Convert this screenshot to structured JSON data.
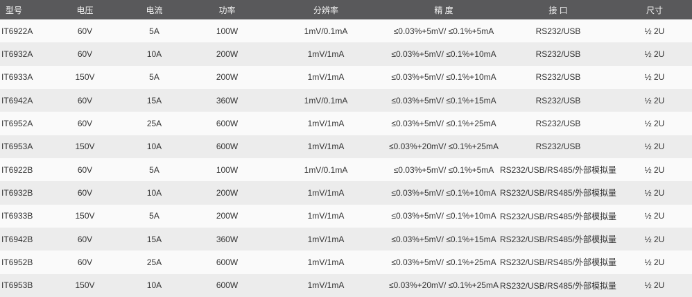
{
  "colors": {
    "header_bg": "#59595b",
    "header_text": "#f2f2f2",
    "row_light": "#fafafa",
    "row_dark": "#ececec",
    "body_text": "#333333"
  },
  "table": {
    "columns": [
      {
        "key": "model",
        "label": "型号"
      },
      {
        "key": "voltage",
        "label": "电压"
      },
      {
        "key": "current",
        "label": "电流"
      },
      {
        "key": "power",
        "label": "功率"
      },
      {
        "key": "resolution",
        "label": "分辨率"
      },
      {
        "key": "accuracy",
        "label": "精 度"
      },
      {
        "key": "interface",
        "label": "接 口"
      },
      {
        "key": "size",
        "label": "尺寸"
      }
    ],
    "rows": [
      [
        "IT6922A",
        "60V",
        "5A",
        "100W",
        "1mV/0.1mA",
        "≤0.03%+5mV/ ≤0.1%+5mA",
        "RS232/USB",
        "½ 2U"
      ],
      [
        "IT6932A",
        "60V",
        "10A",
        "200W",
        "1mV/1mA",
        "≤0.03%+5mV/ ≤0.1%+10mA",
        "RS232/USB",
        "½ 2U"
      ],
      [
        "IT6933A",
        "150V",
        "5A",
        "200W",
        "1mV/1mA",
        "≤0.03%+5mV/ ≤0.1%+10mA",
        "RS232/USB",
        "½ 2U"
      ],
      [
        "IT6942A",
        "60V",
        "15A",
        "360W",
        "1mV/0.1mA",
        "≤0.03%+5mV/ ≤0.1%+15mA",
        "RS232/USB",
        "½ 2U"
      ],
      [
        "IT6952A",
        "60V",
        "25A",
        "600W",
        "1mV/1mA",
        "≤0.03%+5mV/ ≤0.1%+25mA",
        "RS232/USB",
        "½ 2U"
      ],
      [
        "IT6953A",
        "150V",
        "10A",
        "600W",
        "1mV/1mA",
        "≤0.03%+20mV/ ≤0.1%+25mA",
        "RS232/USB",
        "½ 2U"
      ],
      [
        "IT6922B",
        "60V",
        "5A",
        "100W",
        "1mV/0.1mA",
        "≤0.03%+5mV/ ≤0.1%+5mA",
        "RS232/USB/RS485/外部模拟量",
        "½ 2U"
      ],
      [
        "IT6932B",
        "60V",
        "10A",
        "200W",
        "1mV/1mA",
        "≤0.03%+5mV/ ≤0.1%+10mA",
        "RS232/USB/RS485/外部模拟量",
        "½ 2U"
      ],
      [
        "IT6933B",
        "150V",
        "5A",
        "200W",
        "1mV/1mA",
        "≤0.03%+5mV/ ≤0.1%+10mA",
        "RS232/USB/RS485/外部模拟量",
        "½ 2U"
      ],
      [
        "IT6942B",
        "60V",
        "15A",
        "360W",
        "1mV/1mA",
        "≤0.03%+5mV/ ≤0.1%+15mA",
        "RS232/USB/RS485/外部模拟量",
        "½ 2U"
      ],
      [
        "IT6952B",
        "60V",
        "25A",
        "600W",
        "1mV/1mA",
        "≤0.03%+5mV/ ≤0.1%+25mA",
        "RS232/USB/RS485/外部模拟量",
        "½ 2U"
      ],
      [
        "IT6953B",
        "150V",
        "10A",
        "600W",
        "1mV/1mA",
        "≤0.03%+20mV/ ≤0.1%+25mA",
        "RS232/USB/RS485/外部模拟量",
        "½ 2U"
      ]
    ]
  }
}
